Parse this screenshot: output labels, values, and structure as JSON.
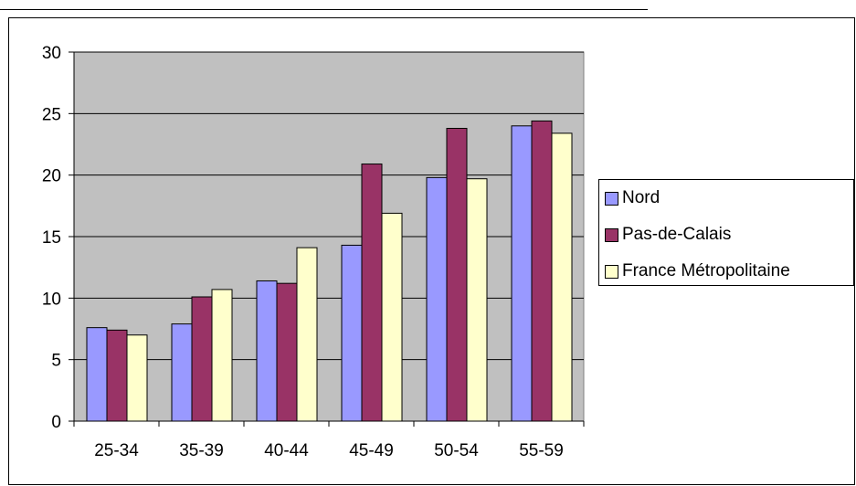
{
  "chart_data": {
    "type": "bar",
    "categories": [
      "25-34",
      "35-39",
      "40-44",
      "45-49",
      "50-54",
      "55-59"
    ],
    "series": [
      {
        "name": "Nord",
        "color": "#9999ff",
        "values": [
          7.6,
          7.9,
          11.4,
          14.3,
          19.8,
          24.0
        ]
      },
      {
        "name": "Pas-de-Calais",
        "color": "#993366",
        "values": [
          7.4,
          10.1,
          11.2,
          20.9,
          23.8,
          24.4
        ]
      },
      {
        "name": "France Métropolitaine",
        "color": "#ffffcc",
        "values": [
          7.0,
          10.7,
          14.1,
          16.9,
          19.7,
          23.4
        ]
      }
    ],
    "ylim": [
      0,
      30
    ],
    "yticks": [
      "0",
      "5",
      "10",
      "15",
      "20",
      "25",
      "30"
    ],
    "grid": true,
    "plot_background": "#c0c0c0",
    "legend_position": "right"
  }
}
